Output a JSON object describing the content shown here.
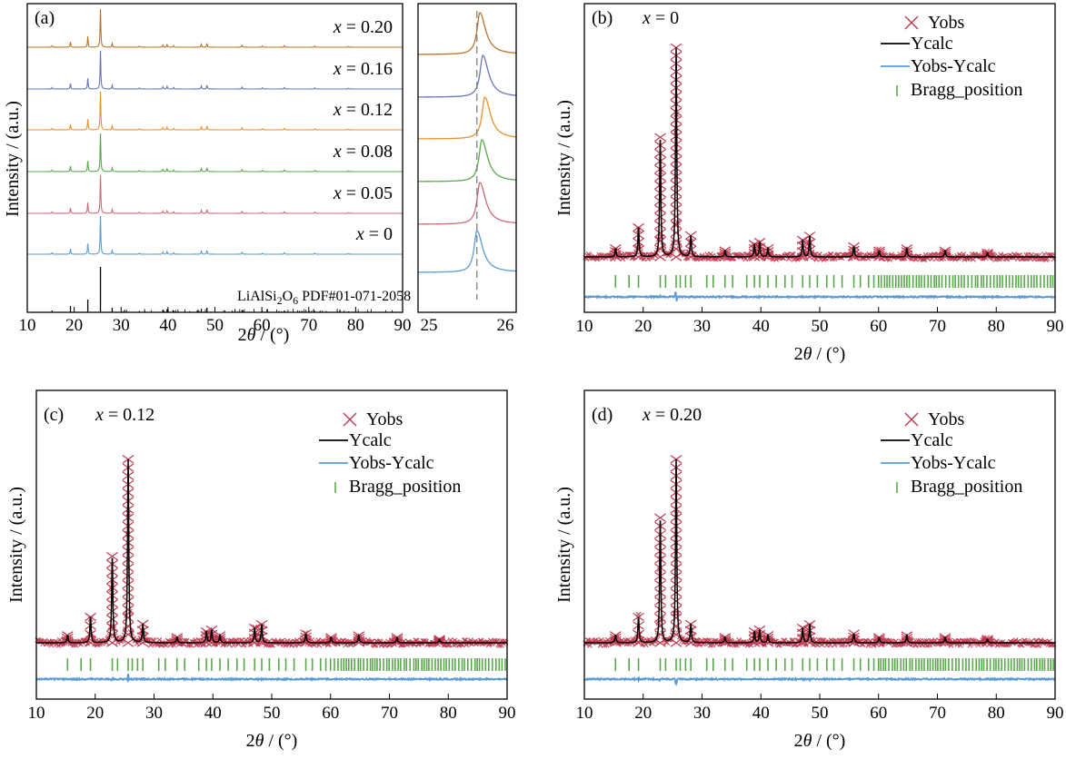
{
  "figure": {
    "panel_a": {
      "label": "(a)",
      "xlabel_prefix": "2",
      "xlabel_theta": "θ",
      "xlabel_suffix": " / (°)",
      "ylabel": "Intensity / (a.u.)",
      "reference_label_pre": "LiAlSi",
      "reference_sub1": "2",
      "reference_mid": "O",
      "reference_sub2": "6",
      "reference_post": " PDF#01-071-2058",
      "x_var": "x",
      "samples": [
        {
          "eq": " = 0.20",
          "color": "#b8742a"
        },
        {
          "eq": " = 0.16",
          "color": "#6b73b8"
        },
        {
          "eq": " = 0.12",
          "color": "#e8912e"
        },
        {
          "eq": " = 0.08",
          "color": "#5aa84c"
        },
        {
          "eq": " = 0.05",
          "color": "#cc6a7c"
        },
        {
          "eq": " = 0",
          "color": "#5b9bd5"
        }
      ]
    },
    "refinements": [
      {
        "label": "(b)",
        "x_var": "x",
        "eq": " = 0"
      },
      {
        "label": "(c)",
        "x_var": "x",
        "eq": " = 0.12"
      },
      {
        "label": "(d)",
        "x_var": "x",
        "eq": " = 0.20"
      }
    ],
    "legend": {
      "yobs": "Yobs",
      "ycalc": "Ycalc",
      "diff": "Yobs-Ycalc",
      "bragg": "Bragg_position"
    },
    "colors": {
      "yobs": "#c0384f",
      "ycalc": "#000000",
      "diff": "#5b9bd5",
      "bragg": "#5aa84c"
    }
  },
  "chart_data": [
    {
      "type": "line",
      "panel": "(a)",
      "xlabel": "2θ / (°)",
      "ylabel": "Intensity / (a.u.)",
      "xlim": [
        10,
        90
      ],
      "xticks": [
        10,
        20,
        30,
        40,
        50,
        60,
        70,
        80,
        90
      ],
      "series": [
        {
          "name": "x = 0.20"
        },
        {
          "name": "x = 0.16"
        },
        {
          "name": "x = 0.12"
        },
        {
          "name": "x = 0.08"
        },
        {
          "name": "x = 0.05"
        },
        {
          "name": "x = 0"
        },
        {
          "name": "LiAlSi2O6 PDF#01-071-2058"
        }
      ],
      "peaks_2theta": [
        15.3,
        19.2,
        22.9,
        25.6,
        28.1,
        33.9,
        38.9,
        39.8,
        41.2,
        47.1,
        48.3,
        55.8,
        60.1,
        64.8,
        71.3,
        78.5
      ],
      "peak_rel_intensity": [
        0.04,
        0.14,
        0.28,
        1.0,
        0.1,
        0.03,
        0.06,
        0.07,
        0.04,
        0.08,
        0.1,
        0.05,
        0.03,
        0.04,
        0.03,
        0.02
      ]
    },
    {
      "type": "line",
      "panel": "(a) inset",
      "xlim": [
        25,
        26
      ],
      "xticks": [
        25,
        26
      ],
      "reference_peak": 25.6
    },
    {
      "type": "line",
      "panel": "(b)",
      "title": "x = 0",
      "xlabel": "2θ / (°)",
      "ylabel": "Intensity / (a.u.)",
      "xlim": [
        10,
        90
      ],
      "xticks": [
        10,
        20,
        30,
        40,
        50,
        60,
        70,
        80,
        90
      ],
      "series": [
        {
          "name": "Yobs"
        },
        {
          "name": "Ycalc"
        },
        {
          "name": "Yobs-Ycalc"
        },
        {
          "name": "Bragg_position"
        }
      ]
    },
    {
      "type": "line",
      "panel": "(c)",
      "title": "x = 0.12",
      "xlabel": "2θ / (°)",
      "ylabel": "Intensity / (a.u.)",
      "xlim": [
        10,
        90
      ],
      "xticks": [
        10,
        20,
        30,
        40,
        50,
        60,
        70,
        80,
        90
      ],
      "series": [
        {
          "name": "Yobs"
        },
        {
          "name": "Ycalc"
        },
        {
          "name": "Yobs-Ycalc"
        },
        {
          "name": "Bragg_position"
        }
      ]
    },
    {
      "type": "line",
      "panel": "(d)",
      "title": "x = 0.20",
      "xlabel": "2θ / (°)",
      "ylabel": "Intensity / (a.u.)",
      "xlim": [
        10,
        90
      ],
      "xticks": [
        10,
        20,
        30,
        40,
        50,
        60,
        70,
        80,
        90
      ],
      "series": [
        {
          "name": "Yobs"
        },
        {
          "name": "Ycalc"
        },
        {
          "name": "Yobs-Ycalc"
        },
        {
          "name": "Bragg_position"
        }
      ]
    }
  ]
}
